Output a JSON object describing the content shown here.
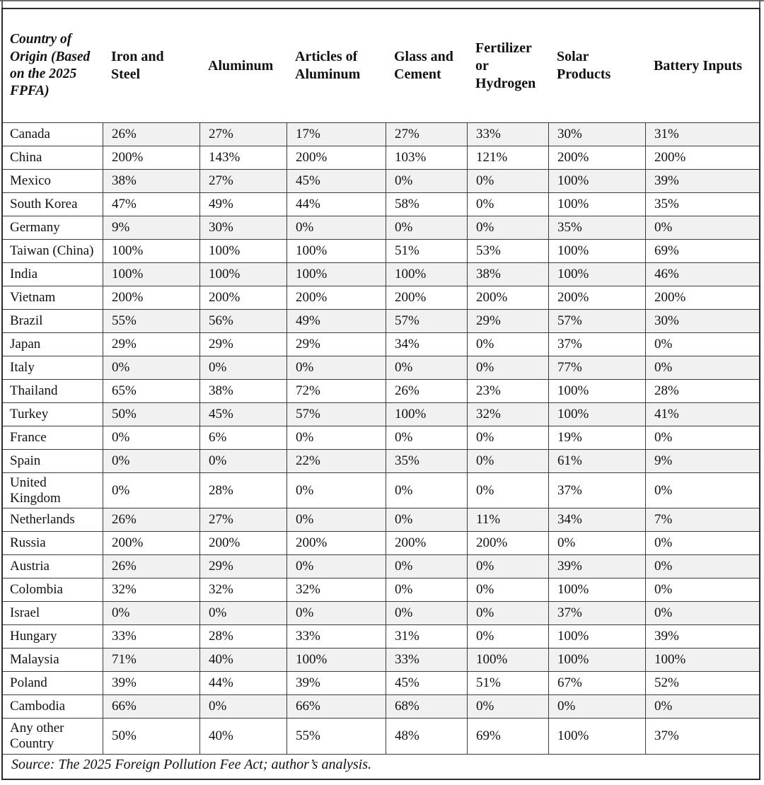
{
  "table": {
    "corner_header": "Country of Origin (Based on the 2025 FPFA)",
    "columns": [
      "Iron and Steel",
      "Aluminum",
      "Articles of Aluminum",
      "Glass and Cement",
      "Fertilizer or Hydrogen",
      "Solar Products",
      "Battery Inputs"
    ],
    "rows": [
      {
        "country": "Canada",
        "values": [
          "26%",
          "27%",
          "17%",
          "27%",
          "33%",
          "30%",
          "31%"
        ]
      },
      {
        "country": "China",
        "values": [
          "200%",
          "143%",
          "200%",
          "103%",
          "121%",
          "200%",
          "200%"
        ]
      },
      {
        "country": "Mexico",
        "values": [
          "38%",
          "27%",
          "45%",
          "0%",
          "0%",
          "100%",
          "39%"
        ]
      },
      {
        "country": "South Korea",
        "values": [
          "47%",
          "49%",
          "44%",
          "58%",
          "0%",
          "100%",
          "35%"
        ]
      },
      {
        "country": "Germany",
        "values": [
          "9%",
          "30%",
          "0%",
          "0%",
          "0%",
          "35%",
          "0%"
        ]
      },
      {
        "country": "Taiwan (China)",
        "values": [
          "100%",
          "100%",
          "100%",
          "51%",
          "53%",
          "100%",
          "69%"
        ]
      },
      {
        "country": "India",
        "values": [
          "100%",
          "100%",
          "100%",
          "100%",
          "38%",
          "100%",
          "46%"
        ]
      },
      {
        "country": "Vietnam",
        "values": [
          "200%",
          "200%",
          "200%",
          "200%",
          "200%",
          "200%",
          "200%"
        ]
      },
      {
        "country": "Brazil",
        "values": [
          "55%",
          "56%",
          "49%",
          "57%",
          "29%",
          "57%",
          "30%"
        ]
      },
      {
        "country": "Japan",
        "values": [
          "29%",
          "29%",
          "29%",
          "34%",
          "0%",
          "37%",
          "0%"
        ]
      },
      {
        "country": "Italy",
        "values": [
          "0%",
          "0%",
          "0%",
          "0%",
          "0%",
          "77%",
          "0%"
        ]
      },
      {
        "country": "Thailand",
        "values": [
          "65%",
          "38%",
          "72%",
          "26%",
          "23%",
          "100%",
          "28%"
        ]
      },
      {
        "country": "Turkey",
        "values": [
          "50%",
          "45%",
          "57%",
          "100%",
          "32%",
          "100%",
          "41%"
        ]
      },
      {
        "country": "France",
        "values": [
          "0%",
          "6%",
          "0%",
          "0%",
          "0%",
          "19%",
          "0%"
        ]
      },
      {
        "country": "Spain",
        "values": [
          "0%",
          "0%",
          "22%",
          "35%",
          "0%",
          "61%",
          "9%"
        ]
      },
      {
        "country": "United Kingdom",
        "values": [
          "0%",
          "28%",
          "0%",
          "0%",
          "0%",
          "37%",
          "0%"
        ]
      },
      {
        "country": "Netherlands",
        "values": [
          "26%",
          "27%",
          "0%",
          "0%",
          "11%",
          "34%",
          "7%"
        ]
      },
      {
        "country": "Russia",
        "values": [
          "200%",
          "200%",
          "200%",
          "200%",
          "200%",
          "0%",
          "0%"
        ]
      },
      {
        "country": "Austria",
        "values": [
          "26%",
          "29%",
          "0%",
          "0%",
          "0%",
          "39%",
          "0%"
        ]
      },
      {
        "country": "Colombia",
        "values": [
          "32%",
          "32%",
          "32%",
          "0%",
          "0%",
          "100%",
          "0%"
        ]
      },
      {
        "country": "Israel",
        "values": [
          "0%",
          "0%",
          "0%",
          "0%",
          "0%",
          "37%",
          "0%"
        ]
      },
      {
        "country": "Hungary",
        "values": [
          "33%",
          "28%",
          "33%",
          "31%",
          "0%",
          "100%",
          "39%"
        ]
      },
      {
        "country": "Malaysia",
        "values": [
          "71%",
          "40%",
          "100%",
          "33%",
          "100%",
          "100%",
          "100%"
        ]
      },
      {
        "country": "Poland",
        "values": [
          "39%",
          "44%",
          "39%",
          "45%",
          "51%",
          "67%",
          "52%"
        ]
      },
      {
        "country": "Cambodia",
        "values": [
          "66%",
          "0%",
          "66%",
          "68%",
          "0%",
          "0%",
          "0%"
        ]
      },
      {
        "country": "Any other Country",
        "values": [
          "50%",
          "40%",
          "55%",
          "48%",
          "69%",
          "100%",
          "37%"
        ]
      }
    ],
    "source": "Source: The 2025 Foreign Pollution Fee Act; author’s analysis."
  },
  "colors": {
    "stripe": "#f1f1f1",
    "grid_border": "#3c3c3c",
    "outer_border": "#2b2b2b",
    "text": "#111111"
  }
}
